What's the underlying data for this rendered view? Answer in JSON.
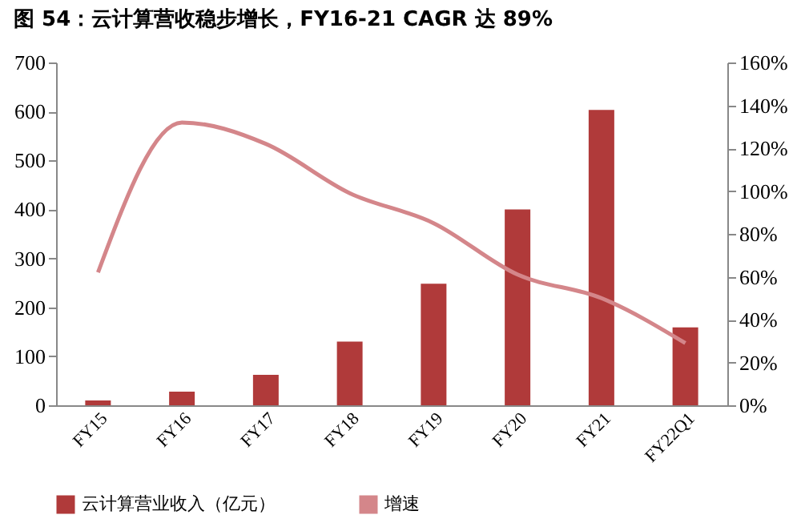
{
  "chart_data": {
    "type": "bar",
    "title": "图 54：云计算营收稳步增长，FY16-21 CAGR 达 89%",
    "categories": [
      "FY15",
      "FY16",
      "FY17",
      "FY18",
      "FY19",
      "FY20",
      "FY21",
      "FY22Q1"
    ],
    "series": [
      {
        "name": "云计算营业收入（亿元）",
        "type": "bar",
        "color": "#b03a3a",
        "values": [
          10,
          28,
          62,
          130,
          248,
          400,
          603,
          159
        ]
      },
      {
        "name": "增速",
        "type": "line",
        "axis": "y2",
        "color": "#d4868a",
        "values": [
          62,
          132,
          122,
          99,
          85,
          61,
          50,
          29
        ]
      }
    ],
    "ylim": [
      0,
      700
    ],
    "yticks": [
      0,
      100,
      200,
      300,
      400,
      500,
      600,
      700
    ],
    "y2lim": [
      0,
      160
    ],
    "y2ticks": [
      {
        "value": 0,
        "label": "0%"
      },
      {
        "value": 20,
        "label": "20%"
      },
      {
        "value": 40,
        "label": "40%"
      },
      {
        "value": 60,
        "label": "60%"
      },
      {
        "value": 80,
        "label": "80%"
      },
      {
        "value": 100,
        "label": "100%"
      },
      {
        "value": 120,
        "label": "120%"
      },
      {
        "value": 140,
        "label": "140%"
      },
      {
        "value": 160,
        "label": "160%"
      }
    ],
    "grid": false,
    "legend": "bottom"
  }
}
